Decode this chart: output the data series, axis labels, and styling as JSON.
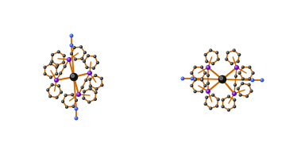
{
  "background_color": "#ffffff",
  "figsize": [
    3.74,
    1.89
  ],
  "dpi": 100,
  "bond_color": "#CC6600",
  "metal_color": "#111111",
  "P_color": "#6600BB",
  "N_color": "#2244EE",
  "C_color": "#1a1a1a",
  "metal_size": 0.028,
  "P_size": 0.016,
  "N_size": 0.013,
  "C_size": 0.011
}
